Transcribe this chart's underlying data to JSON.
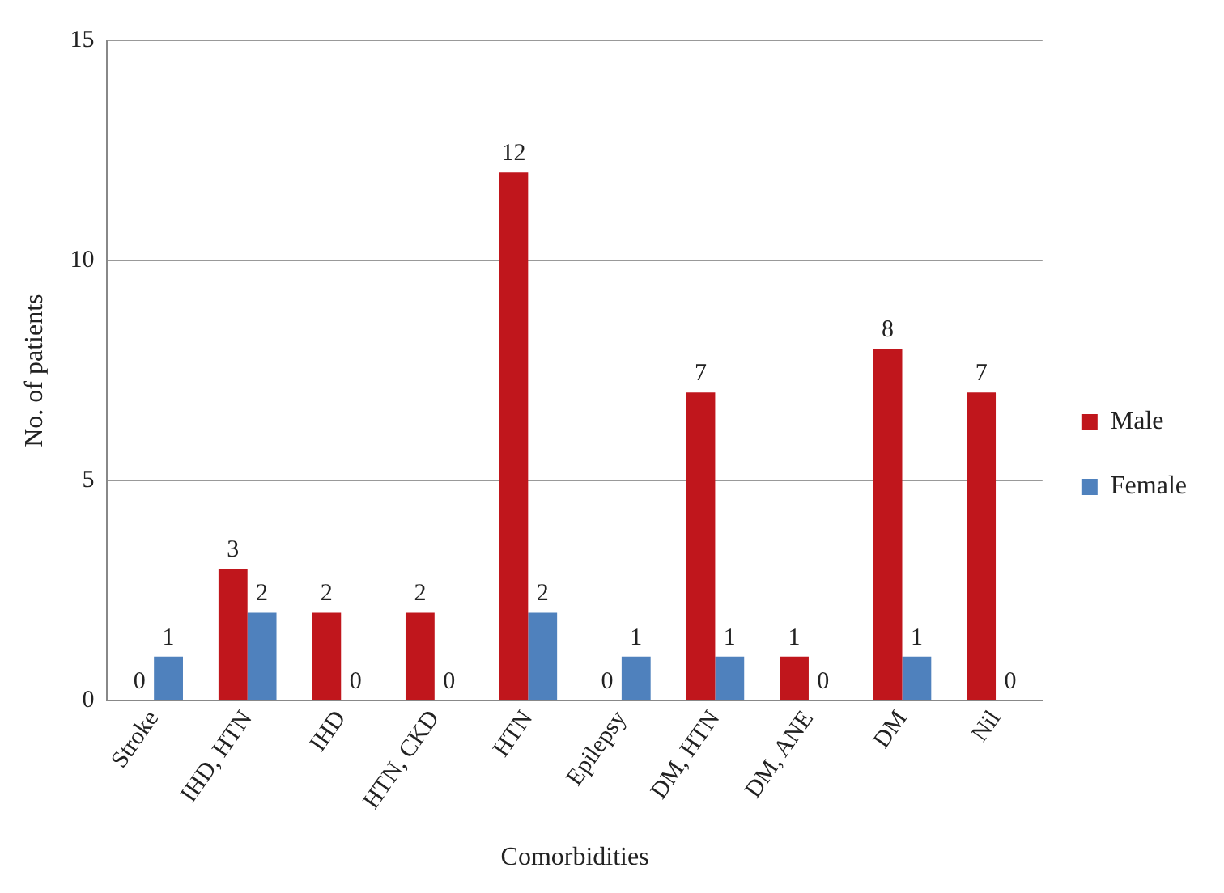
{
  "chart_data": {
    "type": "bar",
    "xlabel": "Comorbidities",
    "ylabel": "No. of patients",
    "categories": [
      "Stroke",
      "IHD, HTN",
      "IHD",
      "HTN, CKD",
      "HTN",
      "Epilepsy",
      "DM, HTN",
      "DM, ANE",
      "DM",
      "Nil"
    ],
    "series": [
      {
        "name": "Male",
        "color": "#c0161c",
        "values": [
          0,
          3,
          2,
          2,
          12,
          0,
          7,
          1,
          8,
          7
        ]
      },
      {
        "name": "Female",
        "color": "#4f81bd",
        "values": [
          1,
          2,
          0,
          0,
          2,
          1,
          1,
          0,
          1,
          0
        ]
      }
    ],
    "ylim": [
      0,
      15
    ],
    "yticks": [
      0,
      5,
      10,
      15
    ],
    "grid": "y",
    "legend": "right",
    "data_labels": true
  }
}
